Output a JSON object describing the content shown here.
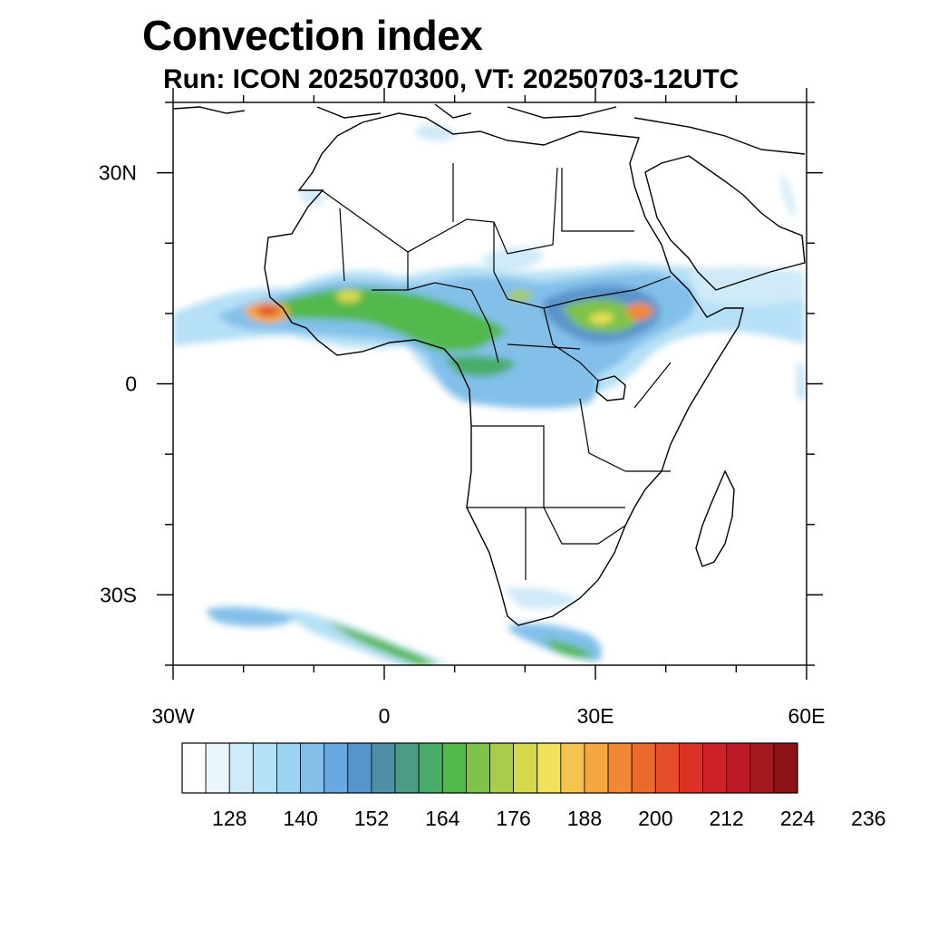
{
  "title": "Convection index",
  "subtitle": "Run: ICON 2025070300,  VT: 20250703-12UTC",
  "map": {
    "lon_range": [
      -30,
      60
    ],
    "lat_range": [
      -40,
      40
    ],
    "x_tick_labels": [
      {
        "lon": -30,
        "label": "30W"
      },
      {
        "lon": 0,
        "label": "0"
      },
      {
        "lon": 30,
        "label": "30E"
      },
      {
        "lon": 60,
        "label": "60E"
      }
    ],
    "y_tick_labels": [
      {
        "lat": 30,
        "label": "30N"
      },
      {
        "lat": 0,
        "label": "0"
      },
      {
        "lat": -30,
        "label": "30S"
      }
    ]
  },
  "colorbar": {
    "colors": [
      "#ffffff",
      "#eaf6fc",
      "#cfeaf8",
      "#b6e0f6",
      "#9bd4f2",
      "#82c0ea",
      "#6aa9df",
      "#5894cc",
      "#4f8ea6",
      "#4b9d86",
      "#49ad6a",
      "#52b84c",
      "#7ec24a",
      "#a9cc4a",
      "#d6d94e",
      "#efe25a",
      "#f6c44e",
      "#f4a640",
      "#f08834",
      "#ea6a2c",
      "#e44e28",
      "#dc3226",
      "#cc2228",
      "#bc1a26",
      "#a41a1e",
      "#8c1418"
    ],
    "labels": [
      "128",
      "140",
      "152",
      "164",
      "176",
      "188",
      "200",
      "212",
      "224",
      "236"
    ]
  }
}
